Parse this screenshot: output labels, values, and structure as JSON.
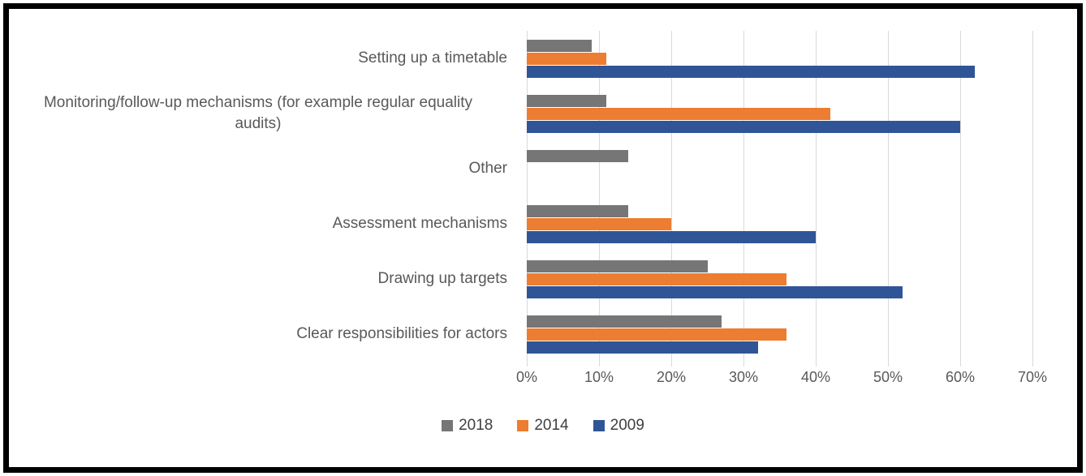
{
  "chart_data": {
    "type": "bar",
    "orientation": "horizontal",
    "title": "",
    "categories": [
      "Setting up a timetable",
      "Monitoring/follow-up mechanisms (for example regular equality audits)",
      "Other",
      "Assessment mechanisms",
      "Drawing up targets",
      "Clear responsibilities for actors"
    ],
    "series": [
      {
        "name": "2018",
        "color": "#767676",
        "values": [
          9,
          11,
          14,
          14,
          25,
          27
        ]
      },
      {
        "name": "2014",
        "color": "#ED7D31",
        "values": [
          11,
          42,
          0,
          20,
          36,
          36
        ]
      },
      {
        "name": "2009",
        "color": "#2F5597",
        "values": [
          62,
          60,
          0,
          40,
          52,
          32
        ]
      }
    ],
    "x_ticks": [
      "0%",
      "10%",
      "20%",
      "30%",
      "40%",
      "50%",
      "60%",
      "70%"
    ],
    "xlim": [
      0,
      70
    ],
    "grid": true,
    "legend_position": "bottom",
    "colors": {
      "gridline": "#D9D9D9",
      "axis_text": "#595959",
      "category_text": "#595959",
      "legend_text": "#404040",
      "frame_border": "#000000",
      "background": "#FFFFFF"
    }
  }
}
